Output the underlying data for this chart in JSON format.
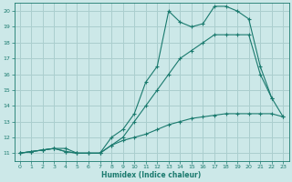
{
  "xlabel": "Humidex (Indice chaleur)",
  "bg_color": "#cce8e8",
  "grid_color": "#aacece",
  "line_color": "#1a7a6e",
  "xlim": [
    -0.5,
    23.5
  ],
  "ylim": [
    10.5,
    20.5
  ],
  "xticks": [
    0,
    1,
    2,
    3,
    4,
    5,
    6,
    7,
    8,
    9,
    10,
    11,
    12,
    13,
    14,
    15,
    16,
    17,
    18,
    19,
    20,
    21,
    22,
    23
  ],
  "yticks": [
    11,
    12,
    13,
    14,
    15,
    16,
    17,
    18,
    19,
    20
  ],
  "line_min_x": [
    0,
    1,
    2,
    3,
    4,
    5,
    6,
    7,
    8,
    9,
    10,
    11,
    12,
    13,
    14,
    15,
    16,
    17,
    18,
    19,
    20,
    21,
    22,
    23
  ],
  "line_min_y": [
    11,
    11.1,
    11.2,
    11.3,
    11.3,
    11.0,
    11.0,
    11.0,
    11.5,
    11.8,
    12.0,
    12.2,
    12.5,
    12.8,
    13.0,
    13.2,
    13.3,
    13.4,
    13.5,
    13.5,
    13.5,
    13.5,
    13.5,
    13.3
  ],
  "line_mean_x": [
    0,
    1,
    2,
    3,
    4,
    5,
    6,
    7,
    8,
    9,
    10,
    11,
    12,
    13,
    14,
    15,
    16,
    17,
    18,
    19,
    20,
    21,
    22,
    23
  ],
  "line_mean_y": [
    11,
    11.1,
    11.2,
    11.3,
    11.1,
    11.0,
    11.0,
    11.0,
    11.5,
    12.0,
    13.0,
    14.0,
    15.0,
    16.0,
    17.0,
    17.5,
    18.0,
    18.5,
    18.5,
    18.5,
    18.5,
    16.0,
    14.5,
    13.3
  ],
  "line_max_x": [
    0,
    1,
    2,
    3,
    4,
    5,
    6,
    7,
    8,
    9,
    10,
    11,
    12,
    13,
    14,
    15,
    16,
    17,
    18,
    19,
    20,
    21,
    22
  ],
  "line_max_y": [
    11,
    11.1,
    11.2,
    11.3,
    11.1,
    11.0,
    11.0,
    11.0,
    12.0,
    12.5,
    13.5,
    15.5,
    16.5,
    20.0,
    19.3,
    19.0,
    19.2,
    20.3,
    20.3,
    20.0,
    19.5,
    16.5,
    14.5
  ]
}
